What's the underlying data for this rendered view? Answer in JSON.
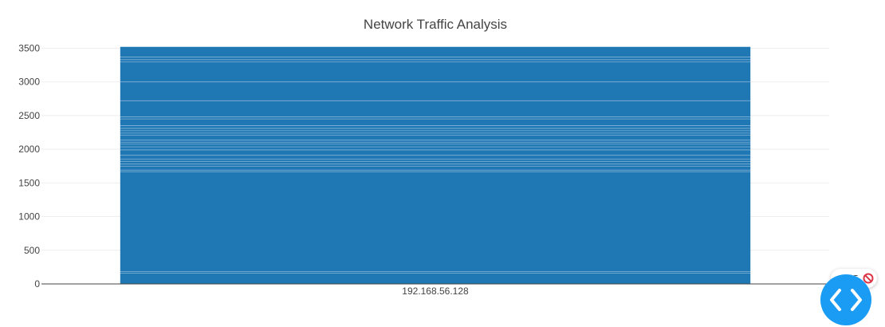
{
  "chart_data": {
    "type": "bar",
    "title": "Network Traffic Analysis",
    "xlabel": "",
    "ylabel": "",
    "categories": [
      "192.168.56.128"
    ],
    "values": [
      3520
    ],
    "segment_boundaries": [
      160,
      185,
      1665,
      1690,
      1745,
      1780,
      1820,
      1855,
      1910,
      1990,
      2035,
      2075,
      2105,
      2135,
      2210,
      2240,
      2275,
      2310,
      2350,
      2450,
      2480,
      2720,
      3000,
      3295,
      3330,
      3370
    ],
    "ylim": [
      0,
      3600
    ],
    "yticks": [
      0,
      500,
      1000,
      1500,
      2000,
      2500,
      3000,
      3500
    ],
    "grid": true,
    "bar_color": "#1f77b4"
  },
  "overlay": {
    "count": "45",
    "status_color": "#dc3545",
    "block_icon": "block-icon",
    "fab_icon": "code-icon",
    "fab_color": "#1a9cf5"
  }
}
